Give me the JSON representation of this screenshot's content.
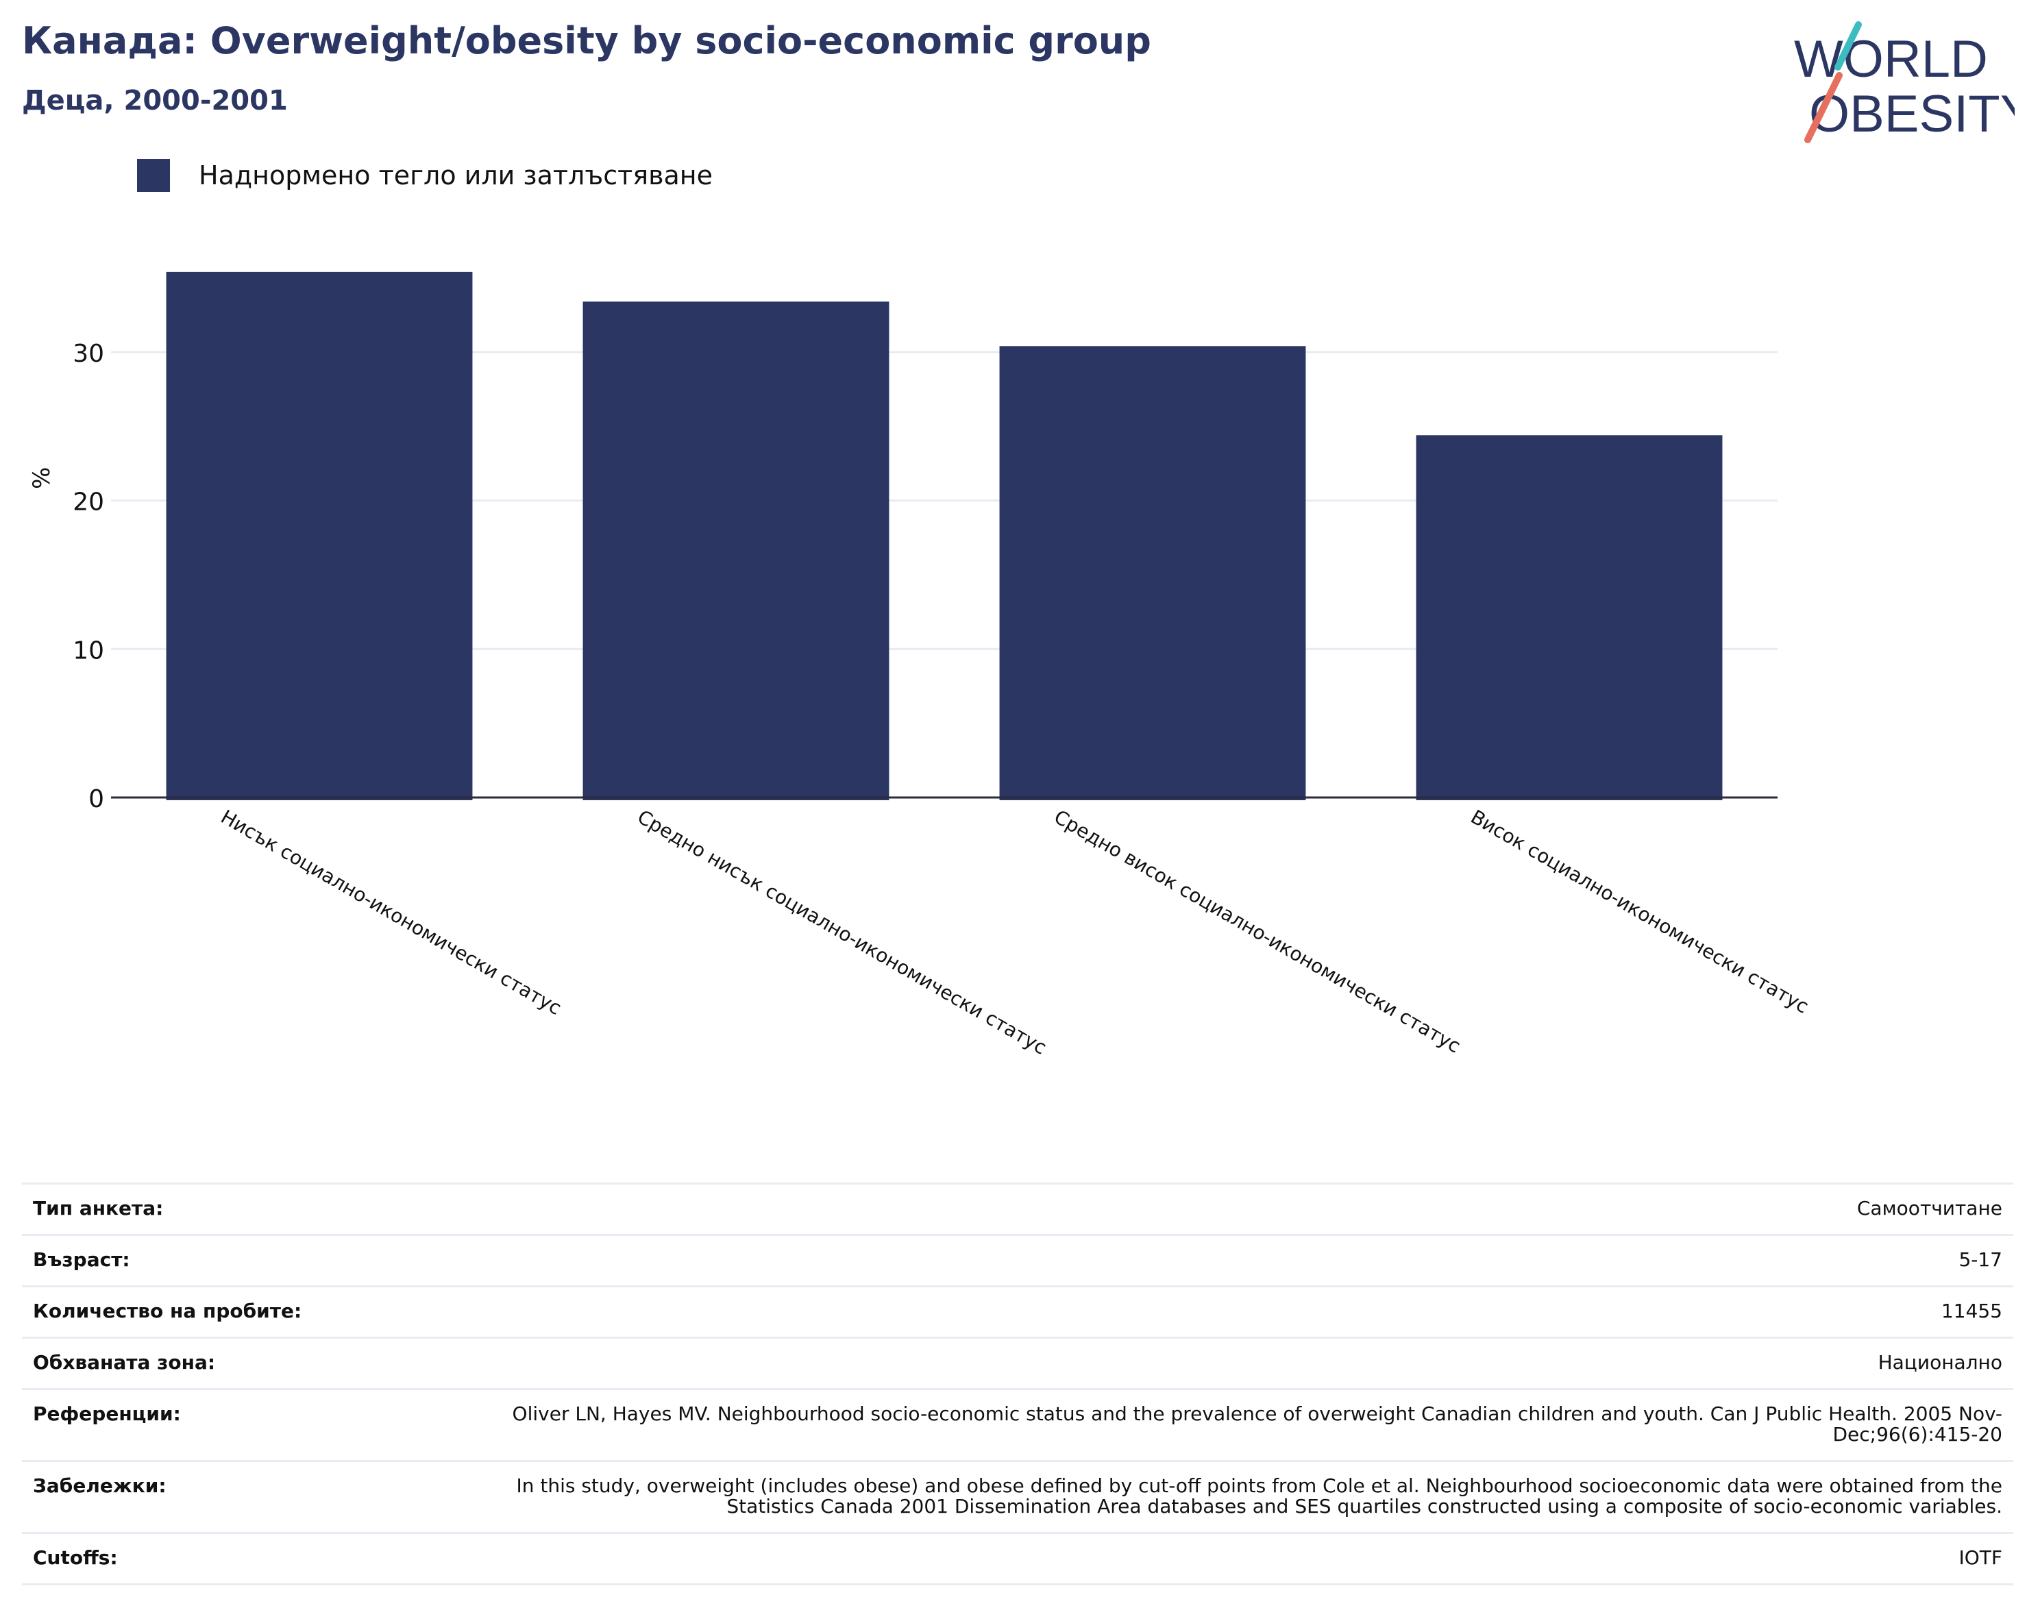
{
  "header": {
    "title": "Канада: Overweight/obesity by socio-economic group",
    "subtitle": "Деца, 2000-2001"
  },
  "logo": {
    "line1": "WORLD",
    "line2": "OBESITY"
  },
  "colors": {
    "bar": "#2b3663",
    "title": "#2b3663",
    "grid": "#e8ecf2",
    "axis": "#2b2b3a",
    "logo_teal": "#3cbcc0",
    "logo_coral": "#e5705f"
  },
  "chart_data": {
    "type": "bar",
    "title": "Канада: Overweight/obesity by socio-economic group",
    "subtitle": "Деца, 2000-2001",
    "ylabel": "%",
    "xlabel": "",
    "categories": [
      "Нисък социално-икономически статус",
      "Средно нисък социално-икономически статус",
      "Средно висок социално-икономически статус",
      "Висок социално-икономически статус"
    ],
    "series": [
      {
        "name": "Наднормено тегло или затлъстяване",
        "values": [
          35.4,
          33.4,
          30.4,
          24.4
        ]
      }
    ],
    "ylim": [
      0,
      37.5
    ],
    "yticks": [
      0,
      10,
      20,
      30
    ],
    "grid": true,
    "legend_position": "top-left"
  },
  "meta": [
    {
      "label": "Тип анкета:",
      "value": "Самоотчитане"
    },
    {
      "label": "Възраст:",
      "value": "5-17"
    },
    {
      "label": "Количество на пробите:",
      "value": "11455"
    },
    {
      "label": "Обхваната зона:",
      "value": "Национално"
    },
    {
      "label": "Референции:",
      "value": "Oliver LN, Hayes MV. Neighbourhood socio-economic status and the prevalence of overweight Canadian children and youth. Can J Public Health. 2005 Nov-Dec;96(6):415-20"
    },
    {
      "label": "Забележки:",
      "value": "In this study, overweight (includes obese) and obese defined by cut-off points from Cole et al. Neighbourhood socioeconomic data were obtained from the Statistics Canada 2001 Dissemination Area databases and SES quartiles constructed using a composite of socio-economic variables."
    },
    {
      "label": "Cutoffs:",
      "value": "IOTF"
    }
  ]
}
